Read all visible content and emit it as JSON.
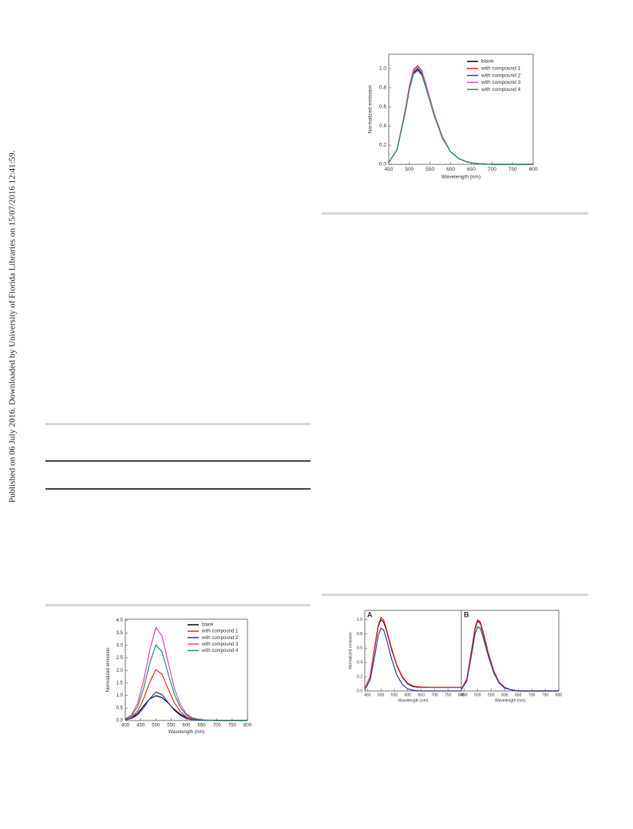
{
  "sidebar": "Published on 06 July 2016. Downloaded by University of Florida Libraries on 15/07/2016 12:41:59.",
  "chart_data": [
    {
      "type": "line",
      "xlabel": "Wavelength (nm)",
      "ylabel": "Normalized emission",
      "x": [
        450,
        470,
        490,
        500,
        510,
        520,
        530,
        540,
        560,
        580,
        600,
        620,
        640,
        660,
        700,
        750,
        800
      ],
      "xlim": [
        450,
        800
      ],
      "xticks": [
        450,
        500,
        550,
        600,
        650,
        700,
        750,
        800
      ],
      "ylim": [
        0,
        1.15
      ],
      "yticks": [
        {
          "value": 0,
          "label": "0.0"
        },
        0.2,
        0.4,
        0.6,
        0.8,
        {
          "value": 1,
          "label": "1.0"
        }
      ],
      "series": [
        {
          "name": "blank",
          "color": "#111111",
          "values": [
            0.02,
            0.15,
            0.55,
            0.8,
            0.96,
            1.0,
            0.95,
            0.82,
            0.52,
            0.28,
            0.13,
            0.06,
            0.025,
            0.01,
            0,
            0,
            0
          ]
        },
        {
          "name": "with compound 1",
          "color": "#e8322d",
          "values": [
            0.02,
            0.15,
            0.57,
            0.82,
            0.99,
            1.03,
            0.98,
            0.84,
            0.53,
            0.29,
            0.13,
            0.06,
            0.025,
            0.01,
            0,
            0,
            0
          ]
        },
        {
          "name": "with compound 2",
          "color": "#3a3ea8",
          "values": [
            0.02,
            0.15,
            0.55,
            0.79,
            0.95,
            0.99,
            0.94,
            0.81,
            0.51,
            0.28,
            0.13,
            0.06,
            0.025,
            0.01,
            0,
            0,
            0
          ]
        },
        {
          "name": "with compound 3",
          "color": "#d44fc4",
          "values": [
            0.02,
            0.15,
            0.56,
            0.82,
            0.98,
            1.02,
            0.97,
            0.84,
            0.53,
            0.29,
            0.13,
            0.06,
            0.025,
            0.01,
            0,
            0,
            0
          ]
        },
        {
          "name": "with compound 4",
          "color": "#2a9a6a",
          "values": [
            0.02,
            0.15,
            0.54,
            0.78,
            0.94,
            0.98,
            0.93,
            0.8,
            0.51,
            0.27,
            0.13,
            0.06,
            0.025,
            0.01,
            0,
            0,
            0
          ]
        }
      ]
    },
    {
      "type": "line",
      "xlabel": "Wavelength (nm)",
      "ylabel": "Normalized emission",
      "x": [
        400,
        420,
        440,
        460,
        480,
        500,
        520,
        540,
        560,
        580,
        600,
        620,
        650,
        700,
        750,
        800
      ],
      "xlim": [
        400,
        800
      ],
      "xticks": [
        400,
        450,
        500,
        550,
        600,
        650,
        700,
        750,
        800
      ],
      "ylim": [
        0,
        4.05
      ],
      "yticks": [
        {
          "value": 0,
          "label": "0.0"
        },
        0.5,
        {
          "value": 1,
          "label": "1.0"
        },
        1.5,
        {
          "value": 2,
          "label": "2.0"
        },
        2.5,
        {
          "value": 3,
          "label": "3.0"
        },
        3.5,
        {
          "value": 4,
          "label": "4.0"
        }
      ],
      "series": [
        {
          "name": "blank",
          "color": "#111111",
          "values": [
            0.03,
            0.1,
            0.28,
            0.58,
            0.86,
            0.99,
            0.92,
            0.7,
            0.45,
            0.25,
            0.12,
            0.05,
            0.01,
            0,
            0,
            0
          ]
        },
        {
          "name": "with compound 1",
          "color": "#e8322d",
          "values": [
            0.04,
            0.12,
            0.37,
            0.86,
            1.54,
            2.03,
            1.85,
            1.27,
            0.72,
            0.35,
            0.14,
            0.06,
            0.02,
            0,
            0,
            0
          ]
        },
        {
          "name": "with compound 2",
          "color": "#3a3ea8",
          "values": [
            0.03,
            0.08,
            0.22,
            0.5,
            0.87,
            1.14,
            1.04,
            0.72,
            0.41,
            0.2,
            0.08,
            0.03,
            0.01,
            0,
            0,
            0
          ]
        },
        {
          "name": "with compound 3",
          "color": "#d44fc4",
          "values": [
            0.07,
            0.22,
            0.68,
            1.58,
            2.81,
            3.72,
            3.38,
            2.33,
            1.31,
            0.64,
            0.26,
            0.11,
            0.03,
            0,
            0,
            0
          ]
        },
        {
          "name": "with compound 4",
          "color": "#2a9a6a",
          "values": [
            0.06,
            0.18,
            0.55,
            1.28,
            2.29,
            3.02,
            2.75,
            1.89,
            1.07,
            0.52,
            0.21,
            0.09,
            0.03,
            0,
            0,
            0
          ]
        }
      ]
    },
    {
      "type": "line",
      "title": "A",
      "xlabel": "Wavelength (nm)",
      "ylabel": "Normalized emission",
      "x": [
        440,
        460,
        480,
        490,
        500,
        510,
        520,
        540,
        560,
        580,
        600,
        620,
        650,
        700,
        750,
        800
      ],
      "xlim": [
        440,
        800
      ],
      "xticks": [
        450,
        500,
        550,
        600,
        650,
        700,
        750,
        800
      ],
      "ylim": [
        0,
        1.13
      ],
      "yticks": [
        {
          "value": 0,
          "label": "0.0"
        },
        0.2,
        0.4,
        0.6,
        0.8,
        {
          "value": 1,
          "label": "1.0"
        }
      ],
      "series": [
        {
          "color": "#111111",
          "values": [
            0.03,
            0.2,
            0.68,
            0.9,
            1.0,
            0.97,
            0.86,
            0.58,
            0.35,
            0.19,
            0.1,
            0.06,
            0.05,
            0.05,
            0.05,
            0.05
          ]
        },
        {
          "color": "#e8322d",
          "values": [
            0.03,
            0.2,
            0.7,
            0.92,
            1.03,
            1.0,
            0.88,
            0.6,
            0.36,
            0.2,
            0.11,
            0.07,
            0.055,
            0.05,
            0.05,
            0.05
          ]
        },
        {
          "color": "#3a3ea8",
          "values": [
            0.02,
            0.15,
            0.55,
            0.78,
            0.88,
            0.86,
            0.74,
            0.45,
            0.22,
            0.09,
            0.03,
            0.01,
            0,
            0,
            0,
            0
          ]
        }
      ]
    },
    {
      "type": "line",
      "title": "B",
      "xlabel": "Wavelength (nm)",
      "x": [
        440,
        460,
        480,
        490,
        500,
        510,
        520,
        540,
        560,
        580,
        600,
        620,
        650,
        700,
        750,
        800
      ],
      "xlim": [
        440,
        800
      ],
      "xticks": [
        450,
        500,
        550,
        600,
        650,
        700,
        750,
        800
      ],
      "ylim": [
        0,
        1.13
      ],
      "series": [
        {
          "color": "#111111",
          "values": [
            0.02,
            0.16,
            0.62,
            0.86,
            0.98,
            0.95,
            0.82,
            0.52,
            0.27,
            0.12,
            0.05,
            0.02,
            0,
            0,
            0,
            0
          ]
        },
        {
          "color": "#e8322d",
          "values": [
            0.02,
            0.17,
            0.64,
            0.88,
            1.0,
            0.97,
            0.84,
            0.53,
            0.28,
            0.12,
            0.05,
            0.02,
            0,
            0,
            0,
            0
          ]
        },
        {
          "color": "#3a3ea8",
          "values": [
            0.02,
            0.14,
            0.56,
            0.79,
            0.9,
            0.88,
            0.76,
            0.48,
            0.25,
            0.11,
            0.04,
            0.02,
            0,
            0,
            0,
            0
          ]
        }
      ]
    }
  ]
}
